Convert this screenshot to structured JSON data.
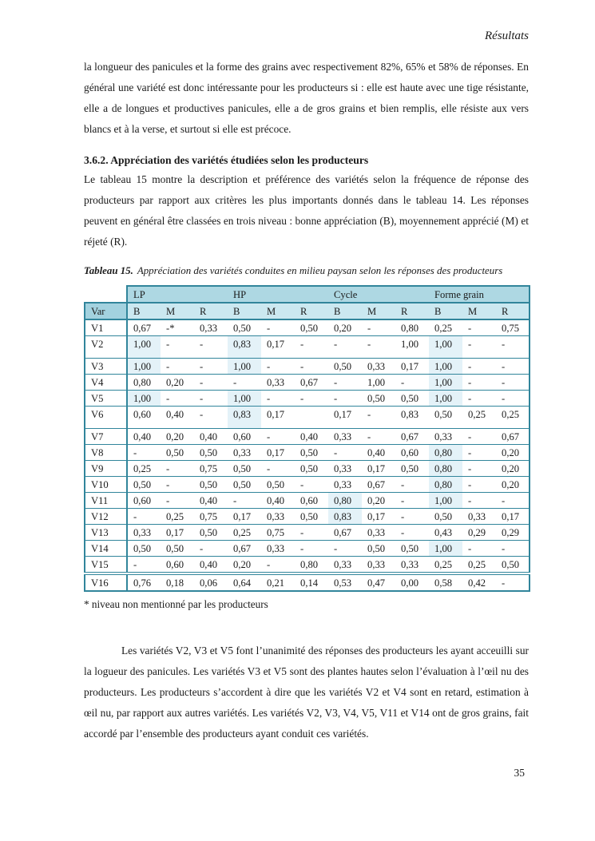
{
  "page": {
    "header_right": "Résultats",
    "page_number": "35"
  },
  "content": {
    "para_top": "la longueur des panicules et la forme des grains avec respectivement 82%, 65% et 58% de réponses. En général une variété est donc intéressante pour les producteurs si : elle est haute avec une tige résistante, elle a de longues et productives panicules, elle a de gros grains et bien remplis, elle résiste aux vers blancs et à la verse, et surtout si elle est précoce.",
    "heading": "3.6.2. Appréciation des variétés étudiées selon les producteurs",
    "para_mid": "Le tableau 15 montre la description et préférence des variétés selon la fréquence de réponse des producteurs par rapport aux critères les plus importants donnés dans le tableau 14. Les réponses peuvent en général être classées en trois niveau : bonne appréciation (B), moyennement apprécié (M) et réjeté (R).",
    "para_close": "Les variétés V2, V3 et V5 font l’unanimité des réponses des producteurs les ayant acceuilli sur la logueur des panicules. Les variétés V3 et V5 sont des plantes hautes selon l’évaluation à l’œil nu des producteurs. Les producteurs s’accordent à dire que les variétés V2 et V4 sont en retard, estimation à œil nu, par rapport aux autres variétés. Les variétés V2, V3, V4, V5, V11 et V14 ont de gros grains, fait accordé par l’ensemble des producteurs ayant conduit ces variétés."
  },
  "table": {
    "caption_label": "Tableau 15.",
    "caption_text": "Appréciation des variétés conduites en milieu paysan selon les réponses des producteurs",
    "var_header": "Var",
    "groups": [
      "LP",
      "HP",
      "Cycle",
      "Forme grain"
    ],
    "sub_headers": [
      "B",
      "M",
      "R"
    ],
    "footnote": "* niveau non mentionné par les producteurs",
    "colors": {
      "border": "#31859b",
      "group_header_bg": "#aed8e3",
      "header_bg": "#cbe8f0",
      "var_header_bg": "#a3d2df",
      "highlight_bg": "#e4f2f8"
    },
    "rows": [
      {
        "var": "V1",
        "cells": [
          {
            "v": "0,67",
            "b": true
          },
          {
            "v": "-*"
          },
          {
            "v": "0,33"
          },
          {
            "v": "0,50"
          },
          {
            "v": "-"
          },
          {
            "v": "0,50"
          },
          {
            "v": "0,20"
          },
          {
            "v": "-"
          },
          {
            "v": "0,80"
          },
          {
            "v": "0,25"
          },
          {
            "v": "-"
          },
          {
            "v": "0,75"
          }
        ]
      },
      {
        "var": "V2",
        "cells": [
          {
            "v": "1,00",
            "b": true,
            "hl": true
          },
          {
            "v": "-"
          },
          {
            "v": "-"
          },
          {
            "v": "0,83",
            "b": true,
            "hl": true
          },
          {
            "v": "0,17"
          },
          {
            "v": "-"
          },
          {
            "v": "-",
            "b": true
          },
          {
            "v": "-"
          },
          {
            "v": "1,00"
          },
          {
            "v": "1,00",
            "b": true,
            "hl": true
          },
          {
            "v": "-"
          },
          {
            "v": "-"
          }
        ]
      },
      {
        "var": "V3",
        "cells": [
          {
            "v": "1,00",
            "b": true,
            "hl": true
          },
          {
            "v": "-"
          },
          {
            "v": "-"
          },
          {
            "v": "1,00",
            "b": true,
            "hl": true
          },
          {
            "v": "-"
          },
          {
            "v": "-"
          },
          {
            "v": "0,50",
            "b": true
          },
          {
            "v": "0,33"
          },
          {
            "v": "0,17"
          },
          {
            "v": "1,00",
            "b": true,
            "hl": true
          },
          {
            "v": "-"
          },
          {
            "v": "-"
          }
        ]
      },
      {
        "var": "V4",
        "cells": [
          {
            "v": "0,80",
            "b": true
          },
          {
            "v": "0,20"
          },
          {
            "v": "-"
          },
          {
            "v": "-",
            "b": true
          },
          {
            "v": "0,33"
          },
          {
            "v": "0,67"
          },
          {
            "v": "-",
            "b": true
          },
          {
            "v": "1,00"
          },
          {
            "v": "-"
          },
          {
            "v": "1,00",
            "b": true,
            "hl": true
          },
          {
            "v": "-"
          },
          {
            "v": "-"
          }
        ]
      },
      {
        "var": "V5",
        "cells": [
          {
            "v": "1,00",
            "b": true,
            "hl": true
          },
          {
            "v": "-"
          },
          {
            "v": "-"
          },
          {
            "v": "1,00",
            "b": true,
            "hl": true
          },
          {
            "v": "-"
          },
          {
            "v": "-"
          },
          {
            "v": "-",
            "b": true
          },
          {
            "v": "0,50"
          },
          {
            "v": "0,50"
          },
          {
            "v": "1,00",
            "b": true,
            "hl": true
          },
          {
            "v": "-"
          },
          {
            "v": "-"
          }
        ]
      },
      {
        "var": "V6",
        "cells": [
          {
            "v": "0,60",
            "b": true
          },
          {
            "v": "0,40"
          },
          {
            "v": "-"
          },
          {
            "v": "0,83",
            "b": true,
            "hl": true
          },
          {
            "v": "0,17"
          },
          {
            "v": ""
          },
          {
            "v": "0,17"
          },
          {
            "v": "-"
          },
          {
            "v": "0,83"
          },
          {
            "v": "0,50"
          },
          {
            "v": "0,25"
          },
          {
            "v": "0,25"
          }
        ]
      },
      {
        "var": "V7",
        "cells": [
          {
            "v": "0,40",
            "b": true
          },
          {
            "v": "0,20"
          },
          {
            "v": "0,40"
          },
          {
            "v": "0,60",
            "b": true
          },
          {
            "v": "-"
          },
          {
            "v": "0,40"
          },
          {
            "v": "0,33"
          },
          {
            "v": "-"
          },
          {
            "v": "0,67"
          },
          {
            "v": "0,33"
          },
          {
            "v": "-"
          },
          {
            "v": "0,67"
          }
        ]
      },
      {
        "var": "V8",
        "cells": [
          {
            "v": "-",
            "b": true
          },
          {
            "v": "0,50"
          },
          {
            "v": "0,50"
          },
          {
            "v": "0,33"
          },
          {
            "v": "0,17"
          },
          {
            "v": "0,50"
          },
          {
            "v": "-"
          },
          {
            "v": "0,40"
          },
          {
            "v": "0,60"
          },
          {
            "v": "0,80",
            "b": true,
            "hl": true
          },
          {
            "v": "-"
          },
          {
            "v": "0,20"
          }
        ]
      },
      {
        "var": "V9",
        "cells": [
          {
            "v": "0,25"
          },
          {
            "v": "-"
          },
          {
            "v": "0,75"
          },
          {
            "v": "0,50"
          },
          {
            "v": "-"
          },
          {
            "v": "0,50"
          },
          {
            "v": "0,33"
          },
          {
            "v": "0,17"
          },
          {
            "v": "0,50"
          },
          {
            "v": "0,80",
            "b": true,
            "hl": true
          },
          {
            "v": "-"
          },
          {
            "v": "0,20"
          }
        ]
      },
      {
        "var": "V10",
        "cells": [
          {
            "v": "0,50"
          },
          {
            "v": "-"
          },
          {
            "v": "0,50"
          },
          {
            "v": "0,50"
          },
          {
            "v": "0,50"
          },
          {
            "v": "-"
          },
          {
            "v": "0,33"
          },
          {
            "v": "0,67"
          },
          {
            "v": "-"
          },
          {
            "v": "0,80",
            "b": true,
            "hl": true
          },
          {
            "v": "-"
          },
          {
            "v": "0,20"
          }
        ]
      },
      {
        "var": "V11",
        "cells": [
          {
            "v": "0,60",
            "b": true
          },
          {
            "v": "-"
          },
          {
            "v": "0,40"
          },
          {
            "v": "-",
            "b": true
          },
          {
            "v": "0,40"
          },
          {
            "v": "0,60"
          },
          {
            "v": "0,80",
            "b": true,
            "hl": true
          },
          {
            "v": "0,20"
          },
          {
            "v": "-"
          },
          {
            "v": "1,00",
            "b": true,
            "hl": true
          },
          {
            "v": "-"
          },
          {
            "v": "-"
          }
        ]
      },
      {
        "var": "V12",
        "cells": [
          {
            "v": "-",
            "b": true
          },
          {
            "v": "0,25"
          },
          {
            "v": "0,75"
          },
          {
            "v": "0,17"
          },
          {
            "v": "0,33"
          },
          {
            "v": "0,50"
          },
          {
            "v": "0,83",
            "b": true,
            "hl": true
          },
          {
            "v": "0,17"
          },
          {
            "v": "-"
          },
          {
            "v": "0,50"
          },
          {
            "v": "0,33"
          },
          {
            "v": "0,17"
          }
        ]
      },
      {
        "var": "V13",
        "cells": [
          {
            "v": "0,33"
          },
          {
            "v": "0,17"
          },
          {
            "v": "0,50"
          },
          {
            "v": "0,25"
          },
          {
            "v": "0,75"
          },
          {
            "v": "-"
          },
          {
            "v": "0,67",
            "b": true
          },
          {
            "v": "0,33"
          },
          {
            "v": "-"
          },
          {
            "v": "0,43",
            "b": true
          },
          {
            "v": "0,29"
          },
          {
            "v": "0,29"
          }
        ]
      },
      {
        "var": "V14",
        "cells": [
          {
            "v": "0,50",
            "b": true
          },
          {
            "v": "0,50"
          },
          {
            "v": "-"
          },
          {
            "v": "0,67",
            "b": true
          },
          {
            "v": "0,33"
          },
          {
            "v": "-"
          },
          {
            "v": "-",
            "b": true
          },
          {
            "v": "0,50"
          },
          {
            "v": "0,50"
          },
          {
            "v": "1,00",
            "b": true,
            "hl": true
          },
          {
            "v": "-"
          },
          {
            "v": "-"
          }
        ]
      },
      {
        "var": "V15",
        "cells": [
          {
            "v": "-",
            "b": true
          },
          {
            "v": "0,60"
          },
          {
            "v": "0,40"
          },
          {
            "v": "0,20"
          },
          {
            "v": "-"
          },
          {
            "v": "0,80"
          },
          {
            "v": "0,33"
          },
          {
            "v": "0,33"
          },
          {
            "v": "0,33"
          },
          {
            "v": "0,25"
          },
          {
            "v": "0,25"
          },
          {
            "v": "0,50"
          }
        ]
      },
      {
        "var": "V16",
        "cells": [
          {
            "v": "0,76",
            "b": true
          },
          {
            "v": "0,18"
          },
          {
            "v": "0,06"
          },
          {
            "v": "0,64",
            "b": true
          },
          {
            "v": "0,21"
          },
          {
            "v": "0,14"
          },
          {
            "v": "0,53",
            "b": true
          },
          {
            "v": "0,47"
          },
          {
            "v": "0,00"
          },
          {
            "v": "0,58",
            "b": true
          },
          {
            "v": "0,42"
          },
          {
            "v": "-"
          }
        ]
      }
    ]
  }
}
